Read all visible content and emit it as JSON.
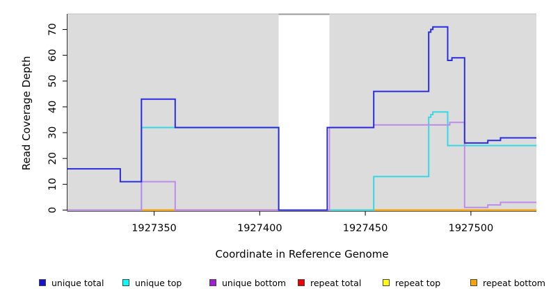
{
  "figure": {
    "background": "#ffffff"
  },
  "chart_data": {
    "type": "line",
    "line_style": "step",
    "title": "",
    "xlabel": "Coordinate in Reference Genome",
    "ylabel": "Read Coverage Depth",
    "xlim": [
      1927309,
      1927531
    ],
    "ylim": [
      0,
      76
    ],
    "x_tick_values": [
      1927350,
      1927400,
      1927450,
      1927500
    ],
    "x_tick_labels": [
      "1927350",
      "1927400",
      "1927450",
      "1927500"
    ],
    "y_tick_values": [
      0,
      10,
      20,
      30,
      40,
      50,
      60,
      70
    ],
    "y_tick_labels": [
      "0",
      "10",
      "20",
      "30",
      "40",
      "50",
      "60",
      "70"
    ],
    "grid": false,
    "panel_background": "#dcdcdc",
    "no_data_gap": {
      "x_start": 1927409,
      "x_end": 1927433
    },
    "series": [
      {
        "name": "unique total",
        "color": "#2b2be0",
        "steps": [
          [
            1927309,
            16
          ],
          [
            1927334,
            11
          ],
          [
            1927344,
            43
          ],
          [
            1927360,
            32
          ],
          [
            1927409,
            0
          ],
          [
            1927432,
            32
          ],
          [
            1927454,
            46
          ],
          [
            1927480,
            69
          ],
          [
            1927481,
            70
          ],
          [
            1927482,
            71
          ],
          [
            1927489,
            58
          ],
          [
            1927491,
            59
          ],
          [
            1927497,
            26
          ],
          [
            1927508,
            27
          ],
          [
            1927514,
            28
          ]
        ]
      },
      {
        "name": "unique top",
        "color": "#35d8e3",
        "steps": [
          [
            1927309,
            0
          ],
          [
            1927344,
            32
          ],
          [
            1927409,
            0
          ],
          [
            1927454,
            13
          ],
          [
            1927480,
            36
          ],
          [
            1927481,
            37
          ],
          [
            1927482,
            38
          ],
          [
            1927489,
            25
          ]
        ]
      },
      {
        "name": "unique bottom",
        "color": "#bd8ce9",
        "steps": [
          [
            1927309,
            0
          ],
          [
            1927344,
            11
          ],
          [
            1927360,
            0
          ],
          [
            1927433,
            32
          ],
          [
            1927454,
            33
          ],
          [
            1927490,
            34
          ],
          [
            1927497,
            1
          ],
          [
            1927508,
            2
          ],
          [
            1927514,
            3
          ]
        ]
      },
      {
        "name": "repeat total",
        "color": "#e03030",
        "steps": [
          [
            1927309,
            0
          ]
        ]
      },
      {
        "name": "repeat top",
        "color": "#f0ee50",
        "steps": [
          [
            1927309,
            0
          ]
        ]
      },
      {
        "name": "repeat bottom",
        "color": "#ffa500",
        "steps": [
          [
            1927309,
            0
          ]
        ]
      }
    ],
    "baseline_segments": [
      {
        "x_start": 1927309,
        "x_end": 1927344,
        "color": "#94d894"
      },
      {
        "x_start": 1927344,
        "x_end": 1927360,
        "color": "#ffa500"
      },
      {
        "x_start": 1927360,
        "x_end": 1927409,
        "color": "#e06287"
      },
      {
        "x_start": 1927433,
        "x_end": 1927454,
        "color": "#94d894"
      },
      {
        "x_start": 1927454,
        "x_end": 1927531,
        "color": "#ffa500"
      }
    ]
  },
  "legend": {
    "items": [
      {
        "label": "unique total",
        "color": "#1212cf"
      },
      {
        "label": "unique top",
        "color": "#00ffff"
      },
      {
        "label": "unique bottom",
        "color": "#a020d0"
      },
      {
        "label": "repeat total",
        "color": "#ee0000"
      },
      {
        "label": "repeat top",
        "color": "#ffff00"
      },
      {
        "label": "repeat bottom",
        "color": "#ffa500"
      }
    ]
  }
}
